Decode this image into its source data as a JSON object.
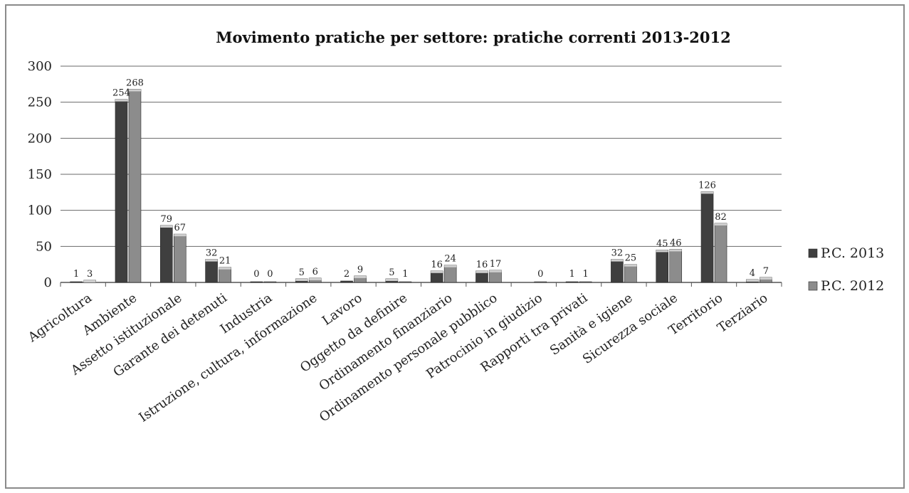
{
  "chart_data": {
    "type": "bar",
    "title": "Movimento pratiche per settore: pratiche correnti 2013-2012",
    "xlabel": "",
    "ylabel": "",
    "ylim": [
      0,
      300
    ],
    "yticks": [
      "0",
      "50",
      "100",
      "150",
      "200",
      "250",
      "300"
    ],
    "grid": true,
    "legend_position": "right",
    "categories": [
      "Agricoltura",
      "Ambiente",
      "Assetto istituzionale",
      "Garante dei detenuti",
      "Industria",
      "Istruzione, cultura, informazione",
      "Lavoro",
      "Oggetto da definire",
      "Ordinamento finanziario",
      "Ordinamento personale pubblico",
      "Patrocinio in giudizio",
      "Rapporti tra privati",
      "Sanità e igiene",
      "Sicurezza sociale",
      "Territorio",
      "Terziario"
    ],
    "series": [
      {
        "name": "P.C. 2013",
        "color": "#3f3f3f",
        "values": [
          1,
          254,
          79,
          32,
          0,
          5,
          2,
          5,
          16,
          16,
          null,
          1,
          32,
          45,
          126,
          4
        ],
        "labels": [
          "1",
          "254",
          "79",
          "32",
          "0",
          "5",
          "2",
          "5",
          "16",
          "16",
          "",
          "1",
          "32",
          "45",
          "126",
          "4"
        ]
      },
      {
        "name": "P.C. 2012",
        "color": "#8c8c8c",
        "values": [
          3,
          268,
          67,
          21,
          0,
          6,
          9,
          1,
          24,
          17,
          0,
          1,
          25,
          46,
          82,
          7
        ],
        "labels": [
          "3",
          "268",
          "67",
          "21",
          "0",
          "6",
          "9",
          "1",
          "24",
          "17",
          "0",
          "1",
          "25",
          "46",
          "82",
          "7"
        ]
      }
    ]
  }
}
